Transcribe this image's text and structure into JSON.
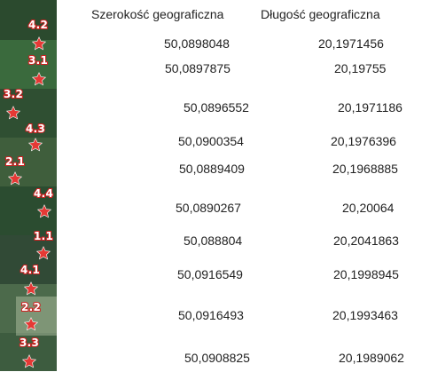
{
  "table": {
    "headers": {
      "latitude": "Szerokość geograficzna",
      "longitude": "Długość geograficzna"
    },
    "rows": [
      {
        "rating": "4.2",
        "lat": "50,0898048",
        "lng": "20,1971456"
      },
      {
        "rating": "3.1",
        "lat": "50,0897875",
        "lng": "20,19755"
      },
      {
        "rating": "3.2",
        "lat": "50,0896552",
        "lng": "20,1971186"
      },
      {
        "rating": "4.3",
        "lat": "50,0900354",
        "lng": "20,1976396"
      },
      {
        "rating": "2.1",
        "lat": "50,0889409",
        "lng": "20,1968885"
      },
      {
        "rating": "4.4",
        "lat": "50,0890267",
        "lng": "20,20064"
      },
      {
        "rating": "1.1",
        "lat": "50,088804",
        "lng": "20,2041863"
      },
      {
        "rating": "4.1",
        "lat": "50,0916549",
        "lng": "20,1998945"
      },
      {
        "rating": "2.2",
        "lat": "50,0916493",
        "lng": "20,1993463"
      },
      {
        "rating": "3.3",
        "lat": "50,0908825",
        "lng": "20,1989062"
      }
    ]
  },
  "icons": {
    "marker": "star-icon"
  },
  "colors": {
    "star": "#e53935",
    "rating_outline": "#d42020"
  }
}
